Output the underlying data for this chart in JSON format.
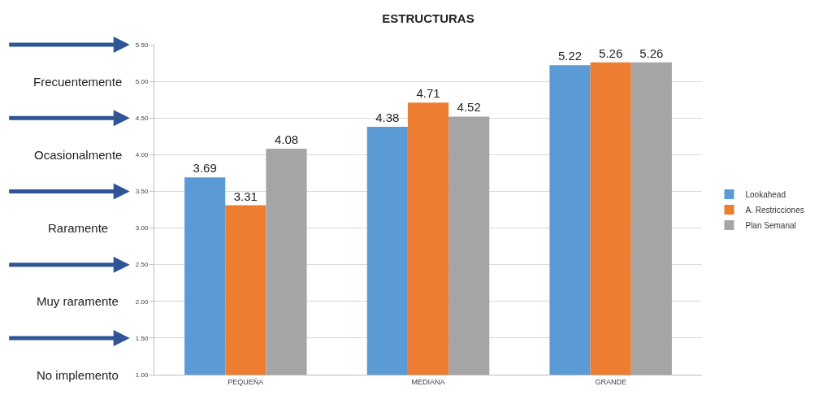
{
  "chart_data": {
    "type": "bar",
    "title": "ESTRUCTURAS",
    "categories": [
      "PEQUEÑA",
      "MEDIANA",
      "GRANDE"
    ],
    "series": [
      {
        "name": "Lookahead",
        "color": "#5b9bd5",
        "values": [
          3.69,
          4.38,
          5.22
        ]
      },
      {
        "name": "A. Restricciones",
        "color": "#ed7d31",
        "values": [
          3.31,
          4.71,
          5.26
        ]
      },
      {
        "name": "Plan Semanal",
        "color": "#a5a5a5",
        "values": [
          4.08,
          4.52,
          5.26
        ]
      }
    ],
    "ylim": [
      1.0,
      5.5
    ],
    "yticks": [
      {
        "value": 1.0,
        "label": "1.00"
      },
      {
        "value": 1.5,
        "label": "1.50"
      },
      {
        "value": 2.0,
        "label": "2.00"
      },
      {
        "value": 2.5,
        "label": "2.50"
      },
      {
        "value": 3.0,
        "label": "3.00"
      },
      {
        "value": 3.5,
        "label": "3.50"
      },
      {
        "value": 4.0,
        "label": "4.00"
      },
      {
        "value": 4.5,
        "label": "4.50"
      },
      {
        "value": 5.0,
        "label": "5.00"
      },
      {
        "value": 5.5,
        "label": "5.50"
      }
    ],
    "annotations": [
      "Frecuentemente",
      "Ocasionalmente",
      "Raramente",
      "Muy raramente",
      "No implemento"
    ],
    "data_labels": true,
    "grid": "y",
    "legend": "right"
  }
}
